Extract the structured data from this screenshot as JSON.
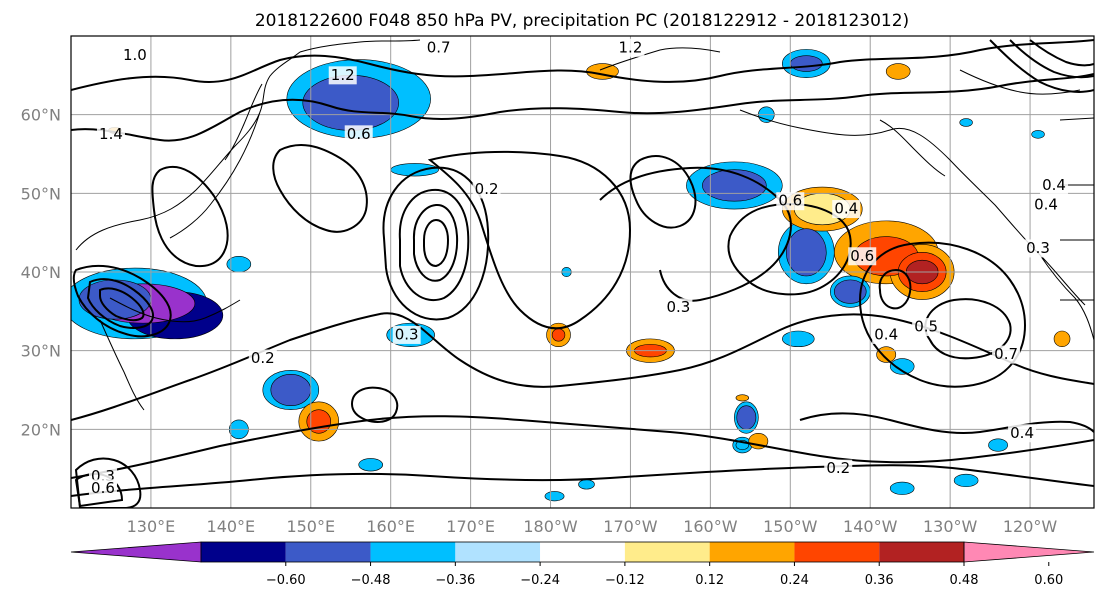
{
  "title": "2018122600 F048 850 hPa PV, precipitation PC (2018122912 - 2018123012)",
  "lat_labels": [
    "60°N",
    "50°N",
    "40°N",
    "30°N",
    "20°N"
  ],
  "lon_labels": [
    "130°E",
    "140°E",
    "150°E",
    "160°E",
    "170°E",
    "180°W",
    "170°W",
    "160°W",
    "150°W",
    "140°W",
    "130°W",
    "120°W"
  ],
  "colorbar": {
    "ticks": [
      "−0.60",
      "−0.48",
      "−0.36",
      "−0.24",
      "−0.12",
      "0.12",
      "0.24",
      "0.36",
      "0.48",
      "0.60"
    ],
    "colors": [
      "#9932cc",
      "#00008b",
      "#3c5ac8",
      "#00bfff",
      "#b0e2ff",
      "#ffffff",
      "#ffec8b",
      "#ffa500",
      "#ff4500",
      "#b22222",
      "#ff88b4"
    ]
  },
  "contour_labels": [
    {
      "text": "1.0",
      "lat": 67.5,
      "lon": 128
    },
    {
      "text": "0.7",
      "lat": 68.5,
      "lon": 166
    },
    {
      "text": "1.2",
      "lat": 68.5,
      "lon": 190
    },
    {
      "text": "1.2",
      "lat": 65.0,
      "lon": 154
    },
    {
      "text": "1.4",
      "lat": 57.5,
      "lon": 125
    },
    {
      "text": "0.6",
      "lat": 57.5,
      "lon": 156
    },
    {
      "text": "0.2",
      "lat": 50.5,
      "lon": 172
    },
    {
      "text": "0.6",
      "lat": 49.0,
      "lon": 210
    },
    {
      "text": "0.4",
      "lat": 48.0,
      "lon": 217
    },
    {
      "text": "0.6",
      "lat": 42.0,
      "lon": 219
    },
    {
      "text": "0.3",
      "lat": 35.5,
      "lon": 196
    },
    {
      "text": "0.3",
      "lat": 32.0,
      "lon": 162
    },
    {
      "text": "0.2",
      "lat": 29.0,
      "lon": 144
    },
    {
      "text": "0.5",
      "lat": 33.0,
      "lon": 227
    },
    {
      "text": "0.4",
      "lat": 32.0,
      "lon": 222
    },
    {
      "text": "0.7",
      "lat": 29.5,
      "lon": 237
    },
    {
      "text": "0.4",
      "lat": 19.5,
      "lon": 239
    },
    {
      "text": "0.2",
      "lat": 15.0,
      "lon": 216
    },
    {
      "text": "0.4",
      "lat": 51.0,
      "lon": 243
    },
    {
      "text": "0.4",
      "lat": 48.5,
      "lon": 242
    },
    {
      "text": "0.3",
      "lat": 43.0,
      "lon": 241
    },
    {
      "text": "0.3",
      "lat": 14.0,
      "lon": 124
    },
    {
      "text": "0.6",
      "lat": 12.5,
      "lon": 124
    }
  ],
  "shaded_blobs": [
    {
      "lat": 36.0,
      "lon": 129.0,
      "rlat": 2.5,
      "rlon": 6.5,
      "level": 0
    },
    {
      "lat": 34.5,
      "lon": 133.0,
      "rlat": 3.0,
      "rlon": 6.0,
      "level": 1
    },
    {
      "lat": 36.5,
      "lon": 125.5,
      "rlat": 2.5,
      "rlon": 4.5,
      "level": 2
    },
    {
      "lat": 36.0,
      "lon": 128.0,
      "rlat": 4.5,
      "rlon": 9.0,
      "level": 3
    },
    {
      "lat": 61.5,
      "lon": 155.0,
      "rlat": 3.5,
      "rlon": 6.0,
      "level": 2
    },
    {
      "lat": 62.0,
      "lon": 156.0,
      "rlat": 5.0,
      "rlon": 9.0,
      "level": 3
    },
    {
      "lat": 51.0,
      "lon": 203.0,
      "rlat": 2.0,
      "rlon": 4.0,
      "level": 2
    },
    {
      "lat": 51.0,
      "lon": 203.0,
      "rlat": 3.0,
      "rlon": 6.0,
      "level": 3
    },
    {
      "lat": 42.5,
      "lon": 212.0,
      "rlat": 3.0,
      "rlon": 2.5,
      "level": 2
    },
    {
      "lat": 42.5,
      "lon": 212.0,
      "rlat": 4.0,
      "rlon": 3.5,
      "level": 3
    },
    {
      "lat": 25.0,
      "lon": 147.5,
      "rlat": 2.0,
      "rlon": 2.5,
      "level": 2
    },
    {
      "lat": 25.0,
      "lon": 147.5,
      "rlat": 2.5,
      "rlon": 3.5,
      "level": 3
    },
    {
      "lat": 32.0,
      "lon": 162.5,
      "rlat": 1.5,
      "rlon": 3.0,
      "level": 3
    },
    {
      "lat": 53.0,
      "lon": 163.0,
      "rlat": 0.8,
      "rlon": 3.0,
      "level": 3
    },
    {
      "lat": 41.0,
      "lon": 141.0,
      "rlat": 1.0,
      "rlon": 1.5,
      "level": 3
    },
    {
      "lat": 37.5,
      "lon": 217.5,
      "rlat": 1.5,
      "rlon": 2.0,
      "level": 2
    },
    {
      "lat": 37.5,
      "lon": 217.5,
      "rlat": 2.0,
      "rlon": 2.5,
      "level": 3
    },
    {
      "lat": 21.5,
      "lon": 204.5,
      "rlat": 1.5,
      "rlon": 1.2,
      "level": 2
    },
    {
      "lat": 21.5,
      "lon": 204.5,
      "rlat": 2.0,
      "rlon": 1.5,
      "level": 3
    },
    {
      "lat": 66.5,
      "lon": 212.0,
      "rlat": 1.0,
      "rlon": 2.0,
      "level": 2
    },
    {
      "lat": 66.5,
      "lon": 212.0,
      "rlat": 1.8,
      "rlon": 3.0,
      "level": 3
    },
    {
      "lat": 20.0,
      "lon": 141.0,
      "rlat": 1.2,
      "rlon": 1.2,
      "level": 3
    },
    {
      "lat": 15.5,
      "lon": 157.5,
      "rlat": 0.8,
      "rlon": 1.5,
      "level": 3
    },
    {
      "lat": 31.5,
      "lon": 211.0,
      "rlat": 1.0,
      "rlon": 2.0,
      "level": 3
    },
    {
      "lat": 28.0,
      "lon": 224.0,
      "rlat": 1.0,
      "rlon": 1.5,
      "level": 3
    },
    {
      "lat": 18.0,
      "lon": 236.0,
      "rlat": 0.8,
      "rlon": 1.2,
      "level": 3
    },
    {
      "lat": 60.0,
      "lon": 207.0,
      "rlat": 1.0,
      "rlon": 1.0,
      "level": 3
    },
    {
      "lat": 59.0,
      "lon": 232.0,
      "rlat": 0.5,
      "rlon": 0.8,
      "level": 3
    },
    {
      "lat": 57.5,
      "lon": 241.0,
      "rlat": 0.5,
      "rlon": 0.8,
      "level": 3
    },
    {
      "lat": 40.0,
      "lon": 182.0,
      "rlat": 0.6,
      "rlon": 0.6,
      "level": 3
    },
    {
      "lat": 18.0,
      "lon": 204.0,
      "rlat": 0.6,
      "rlon": 0.8,
      "level": 3
    },
    {
      "lat": 18.0,
      "lon": 204.0,
      "rlat": 1.0,
      "rlon": 1.2,
      "level": 3
    },
    {
      "lat": 11.5,
      "lon": 180.5,
      "rlat": 0.6,
      "rlon": 1.2,
      "level": 3
    },
    {
      "lat": 12.5,
      "lon": 224.0,
      "rlat": 0.8,
      "rlon": 1.5,
      "level": 3
    },
    {
      "lat": 13.5,
      "lon": 232.0,
      "rlat": 0.8,
      "rlon": 1.5,
      "level": 3
    },
    {
      "lat": 13.0,
      "lon": 184.5,
      "rlat": 0.6,
      "rlon": 1.0,
      "level": 3
    },
    {
      "lat": 48.0,
      "lon": 214.0,
      "rlat": 2.0,
      "rlon": 3.5,
      "level": 6
    },
    {
      "lat": 48.0,
      "lon": 214.0,
      "rlat": 2.8,
      "rlon": 5.0,
      "level": 7
    },
    {
      "lat": 42.0,
      "lon": 222.0,
      "rlat": 2.5,
      "rlon": 4.0,
      "level": 8
    },
    {
      "lat": 42.5,
      "lon": 222.0,
      "rlat": 4.0,
      "rlon": 6.5,
      "level": 7
    },
    {
      "lat": 40.0,
      "lon": 226.5,
      "rlat": 1.5,
      "rlon": 2.0,
      "level": 9
    },
    {
      "lat": 40.0,
      "lon": 226.5,
      "rlat": 2.5,
      "rlon": 3.0,
      "level": 8
    },
    {
      "lat": 40.0,
      "lon": 226.5,
      "rlat": 3.5,
      "rlon": 4.0,
      "level": 7
    },
    {
      "lat": 21.0,
      "lon": 151.0,
      "rlat": 1.5,
      "rlon": 1.5,
      "level": 8
    },
    {
      "lat": 21.0,
      "lon": 151.0,
      "rlat": 2.5,
      "rlon": 2.5,
      "level": 7
    },
    {
      "lat": 32.0,
      "lon": 181.0,
      "rlat": 0.8,
      "rlon": 0.8,
      "level": 8
    },
    {
      "lat": 32.0,
      "lon": 181.0,
      "rlat": 1.5,
      "rlon": 1.5,
      "level": 7
    },
    {
      "lat": 30.0,
      "lon": 192.5,
      "rlat": 0.8,
      "rlon": 2.0,
      "level": 8
    },
    {
      "lat": 30.0,
      "lon": 192.5,
      "rlat": 1.5,
      "rlon": 3.0,
      "level": 7
    },
    {
      "lat": 65.5,
      "lon": 186.5,
      "rlat": 1.0,
      "rlon": 2.0,
      "level": 7
    },
    {
      "lat": 65.5,
      "lon": 223.5,
      "rlat": 1.0,
      "rlon": 1.5,
      "level": 7
    },
    {
      "lat": 29.5,
      "lon": 222.0,
      "rlat": 1.0,
      "rlon": 1.2,
      "level": 7
    },
    {
      "lat": 31.5,
      "lon": 244.0,
      "rlat": 1.0,
      "rlon": 1.0,
      "level": 7
    },
    {
      "lat": 18.5,
      "lon": 206.0,
      "rlat": 1.0,
      "rlon": 1.2,
      "level": 7
    },
    {
      "lat": 24.0,
      "lon": 204.0,
      "rlat": 0.4,
      "rlon": 0.8,
      "level": 7
    },
    {
      "lat": 58.0,
      "lon": 125.5,
      "rlat": 0.4,
      "rlon": 0.8,
      "level": 7
    }
  ]
}
